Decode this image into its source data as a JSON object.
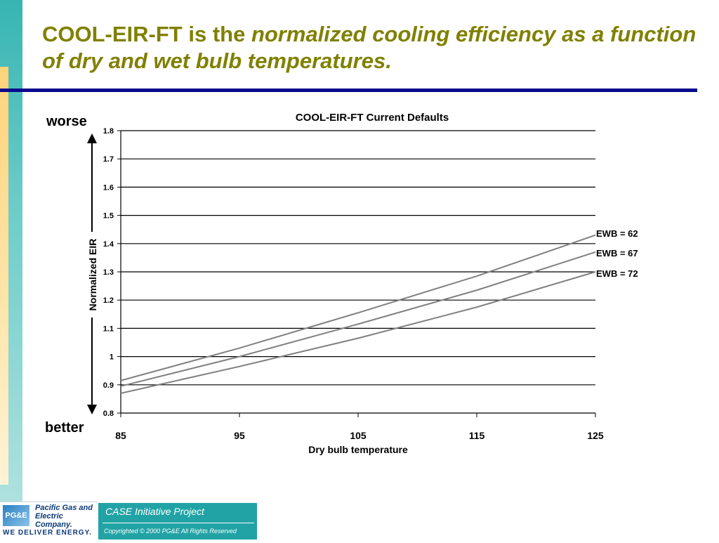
{
  "slide": {
    "title_normal": "COOL-EIR-FT is the ",
    "title_italic": "normalized cooling efficiency as a function of dry and wet bulb temperatures.",
    "worse_label": "worse",
    "better_label": "better"
  },
  "footer": {
    "logo_text": "PG&E",
    "company_name": "Pacific Gas and Electric Company.",
    "tagline": "WE DELIVER ENERGY.",
    "project": "CASE Initiative Project",
    "copyright": "Copyrighted © 2000 PG&E All Rights Reserved"
  },
  "colors": {
    "title": "#808000",
    "rule": "#0a0a8c",
    "series_line": "#808080",
    "footer_bar": "#21a3a5"
  },
  "chart_data": {
    "type": "line",
    "title": "COOL-EIR-FT Current Defaults",
    "xlabel": "Dry bulb temperature",
    "ylabel": "Normalized EIR",
    "xlim": [
      85,
      125
    ],
    "ylim": [
      0.8,
      1.8
    ],
    "x_ticks": [
      85,
      95,
      105,
      115,
      125
    ],
    "y_ticks": [
      0.8,
      0.9,
      1,
      1.1,
      1.2,
      1.3,
      1.4,
      1.5,
      1.6,
      1.7,
      1.8
    ],
    "y_tick_labels": [
      "0.8",
      "0.9",
      "1",
      "1.1",
      "1.2",
      "1.3",
      "1.4",
      "1.5",
      "1.6",
      "1.7",
      "1.8"
    ],
    "grid": "horizontal",
    "legend": "line-end labels (right)",
    "x": [
      85,
      95,
      105,
      115,
      125
    ],
    "series": [
      {
        "name": "EWB = 62",
        "values": [
          0.915,
          1.03,
          1.155,
          1.285,
          1.43
        ]
      },
      {
        "name": "EWB = 67",
        "values": [
          0.895,
          1.0,
          1.115,
          1.235,
          1.37
        ]
      },
      {
        "name": "EWB = 72",
        "values": [
          0.87,
          0.965,
          1.065,
          1.175,
          1.3
        ]
      }
    ]
  }
}
